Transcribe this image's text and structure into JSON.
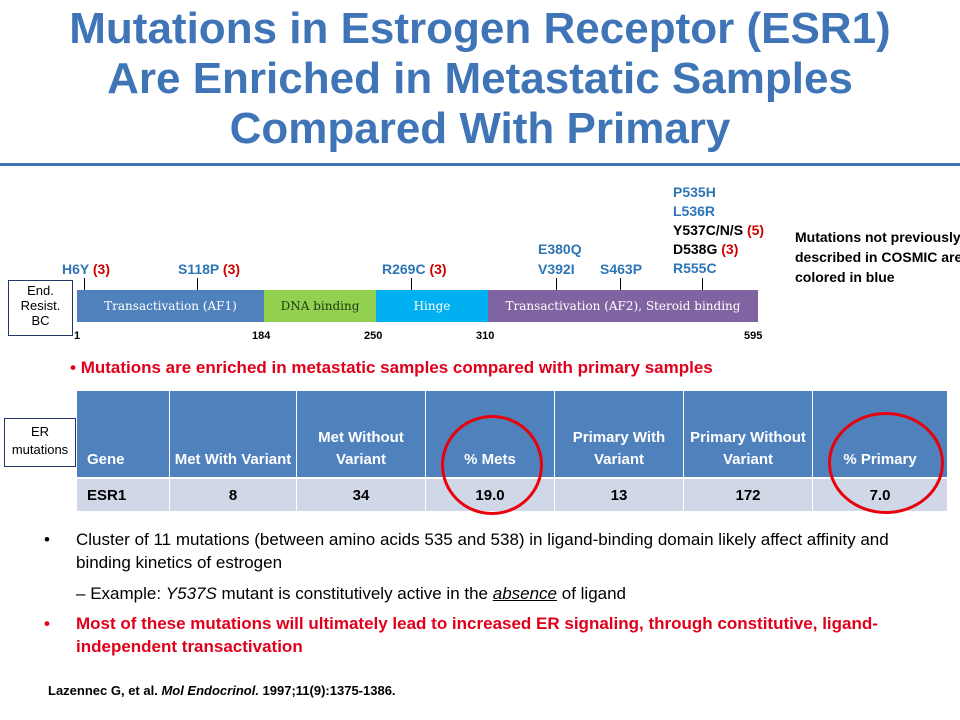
{
  "title": {
    "line1": "Mutations in Estrogen Receptor (ESR1)",
    "line2": "Are Enriched in Metastatic Samples",
    "line3": "Compared With Primary"
  },
  "side_labels": {
    "end_resist": [
      "End.",
      "Resist.",
      "BC"
    ],
    "er_mutations": [
      "ER",
      "mutations"
    ]
  },
  "protein_map": {
    "domains": [
      {
        "label": "Transactivation (AF1)",
        "color": "#4f81bd"
      },
      {
        "label": "DNA binding",
        "color": "#92d050"
      },
      {
        "label": "Hinge",
        "color": "#00b0f0"
      },
      {
        "label": "Transactivation (AF2), Steroid binding",
        "color": "#8064a2"
      }
    ],
    "positions": [
      "1",
      "184",
      "250",
      "310",
      "595"
    ],
    "mutations": {
      "h6y": {
        "name": "H6Y",
        "count": "(3)"
      },
      "s118p": {
        "name": "S118P",
        "count": "(3)"
      },
      "r269c": {
        "name": "R269C",
        "count": "(3)"
      },
      "e380q": "E380Q",
      "v392i": "V392I",
      "s463p": "S463P",
      "p535h": "P535H",
      "l536r": "L536R",
      "y537": {
        "name": "Y537C/N/S",
        "count": "(5)"
      },
      "d538g": {
        "name": "D538G",
        "count": "(3)"
      },
      "r555c": "R555C"
    },
    "note": "Mutations not previously described in COSMIC are colored in blue"
  },
  "enriched_bullet": "Mutations are enriched in metastatic samples compared with primary samples",
  "table": {
    "headers": [
      "Gene",
      "Met With Variant",
      "Met Without Variant",
      "% Mets",
      "Primary With Variant",
      "Primary Without Variant",
      "% Primary"
    ],
    "row": [
      "ESR1",
      "8",
      "34",
      "19.0",
      "13",
      "172",
      "7.0"
    ]
  },
  "bullets": {
    "b1": "Cluster of 11 mutations (between amino acids 535 and 538) in ligand-binding domain likely affect affinity and binding kinetics of estrogen",
    "sub_prefix": "Example: ",
    "sub_mutant": "Y537S",
    "sub_mid": " mutant is constitutively active in the ",
    "sub_absence": "absence",
    "sub_end": " of ligand",
    "b2": "Most of these mutations will ultimately lead to increased ER signaling, through constitutive, ligand-independent transactivation"
  },
  "reference": {
    "authors": "Lazennec G, et al. ",
    "journal": "Mol Endocrinol.",
    "details": " 1997;11(9):1375-1386."
  },
  "colors": {
    "title_blue": "#3f74b7",
    "mutation_blue": "#2e75b6",
    "emphasis_red": "#e0001b",
    "table_header": "#4f81bd",
    "table_row": "#d0d8e8"
  }
}
